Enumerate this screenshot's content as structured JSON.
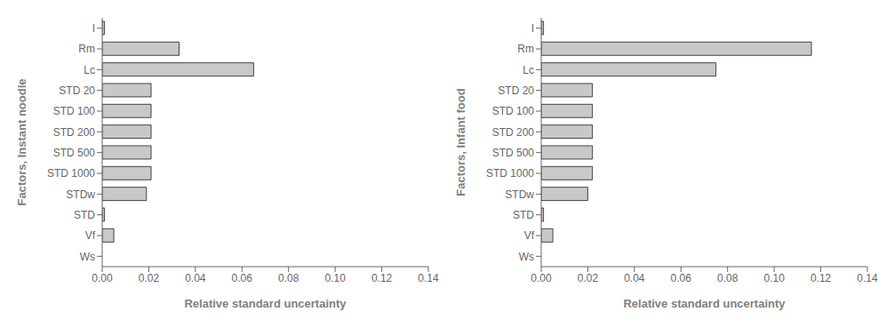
{
  "chart_data": [
    {
      "type": "bar",
      "orientation": "horizontal",
      "categories": [
        "I",
        "Rm",
        "Lc",
        "STD 20",
        "STD 100",
        "STD 200",
        "STD 500",
        "STD 1000",
        "STDw",
        "STD",
        "Vf",
        "Ws"
      ],
      "values": [
        0.001,
        0.033,
        0.065,
        0.021,
        0.021,
        0.021,
        0.021,
        0.021,
        0.019,
        0.001,
        0.005,
        0.0
      ],
      "color": "#c8c8c8",
      "xlabel": "Relative standard uncertainty",
      "ylabel": "Factors, Instant noodle",
      "xlim": [
        0.0,
        0.14
      ],
      "xticks": [
        {
          "value": 0.0,
          "label": "0.00"
        },
        0.02,
        0.04,
        0.06,
        0.08,
        {
          "value": 0.1,
          "label": "0.10"
        },
        0.12,
        0.14
      ],
      "grid": false
    },
    {
      "type": "bar",
      "orientation": "horizontal",
      "categories": [
        "I",
        "Rm",
        "Lc",
        "STD 20",
        "STD 100",
        "STD 200",
        "STD 500",
        "STD 1000",
        "STDw",
        "STD",
        "Vf",
        "Ws"
      ],
      "values": [
        0.001,
        0.116,
        0.075,
        0.022,
        0.022,
        0.022,
        0.022,
        0.022,
        0.02,
        0.001,
        0.005,
        0.0
      ],
      "color": "#c8c8c8",
      "xlabel": "Relative standard uncertainty",
      "ylabel": "Factors, Infant food",
      "xlim": [
        0.0,
        0.14
      ],
      "xticks": [
        {
          "value": 0.0,
          "label": "0.00"
        },
        0.02,
        0.04,
        0.06,
        0.08,
        {
          "value": 0.1,
          "label": "0.10"
        },
        0.12,
        0.14
      ],
      "grid": false
    }
  ]
}
